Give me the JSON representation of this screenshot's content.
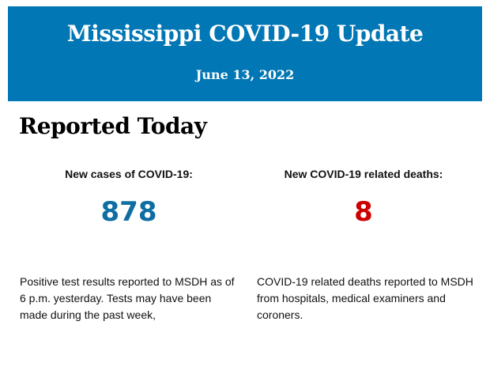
{
  "header": {
    "title": "Mississippi COVID-19 Update",
    "date": "June 13, 2022",
    "background_color": "#0277b5"
  },
  "section": {
    "title": "Reported Today"
  },
  "stats": [
    {
      "label": "New cases of COVID-19:",
      "value": "878",
      "color": "#0e6ea3",
      "description": "Positive test results reported to MSDH as of 6 p.m. yesterday. Tests may have been made during the past week,"
    },
    {
      "label": "New COVID-19 related deaths:",
      "value": "8",
      "color": "#cc0000",
      "description": "COVID-19 related deaths reported to MSDH from hospitals, medical examiners and coroners."
    }
  ]
}
